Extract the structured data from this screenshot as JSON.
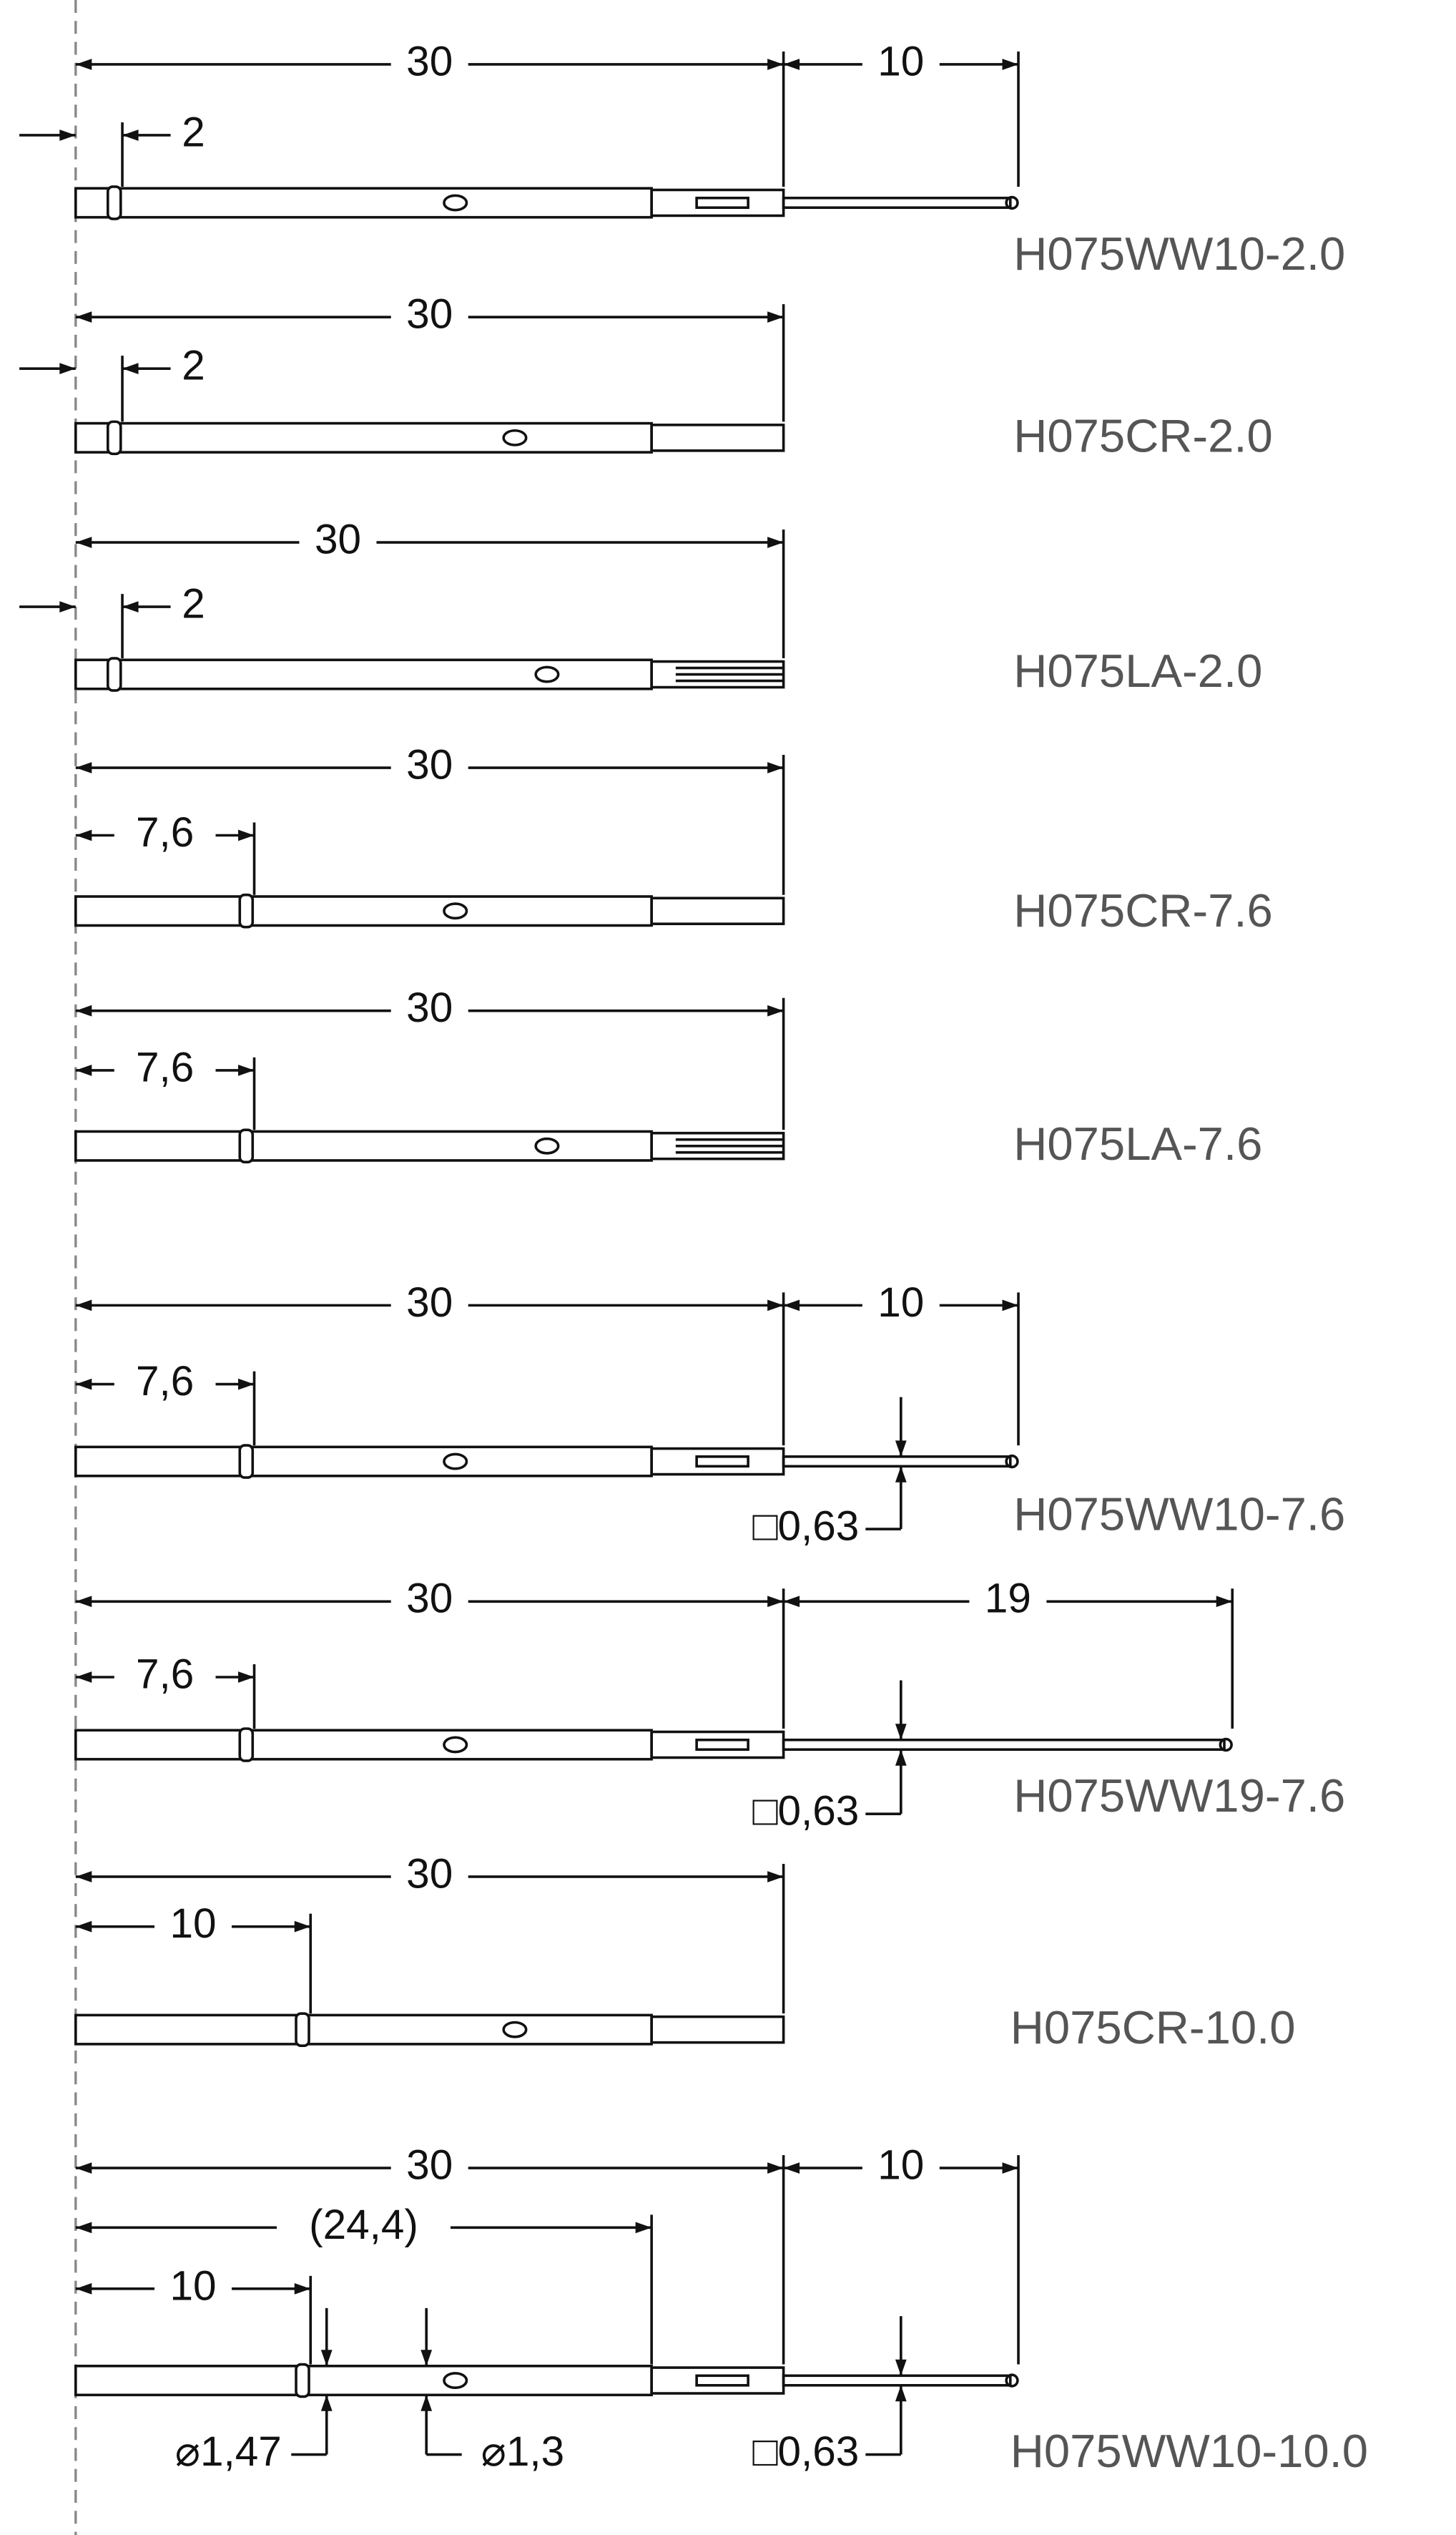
{
  "parts": [
    {
      "label": "H075WW10-2.0",
      "dims": [
        "30",
        "10",
        "2"
      ]
    },
    {
      "label": "H075CR-2.0",
      "dims": [
        "30",
        "2"
      ]
    },
    {
      "label": "H075LA-2.0",
      "dims": [
        "30",
        "2"
      ]
    },
    {
      "label": "H075CR-7.6",
      "dims": [
        "30",
        "7,6"
      ]
    },
    {
      "label": "H075LA-7.6",
      "dims": [
        "30",
        "7,6"
      ]
    },
    {
      "label": "H075WW10-7.6",
      "dims": [
        "30",
        "10",
        "7,6",
        "□0,63"
      ]
    },
    {
      "label": "H075WW19-7.6",
      "dims": [
        "30",
        "19",
        "7,6",
        "□0,63"
      ]
    },
    {
      "label": "H075CR-10.0",
      "dims": [
        "30",
        "10"
      ]
    },
    {
      "label": "H075WW10-10.0",
      "dims": [
        "30",
        "10",
        "(24,4)",
        "10",
        "⌀1,47",
        "⌀1,3",
        "□0,63"
      ]
    }
  ]
}
